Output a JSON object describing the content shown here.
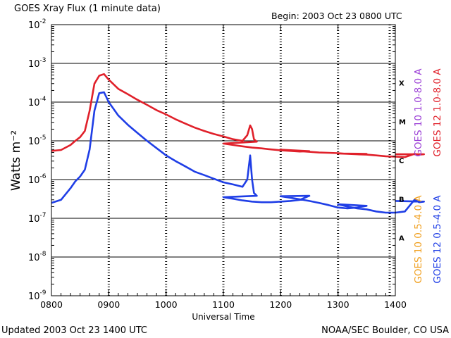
{
  "header": {
    "title": "GOES Xray Flux (1 minute data)",
    "begin": "Begin: 2003 Oct 23 0800 UTC"
  },
  "footer": {
    "updated": "Updated 2003 Oct 23 1400 UTC",
    "credit": "NOAA/SEC Boulder, CO USA"
  },
  "chart_data": {
    "type": "line",
    "title": "GOES Xray Flux (1 minute data)",
    "xlabel": "Universal Time",
    "ylabel": "Watts m⁻²",
    "y_scale": "log",
    "ylim": [
      1e-09,
      0.01
    ],
    "x_ticks": [
      "0800",
      "0900",
      "1000",
      "1100",
      "1200",
      "1300",
      "1400"
    ],
    "y_tick_labels": [
      "10",
      "10",
      "10",
      "10",
      "10",
      "10",
      "10",
      "10"
    ],
    "y_tick_exponents": [
      "-2",
      "-3",
      "-4",
      "-5",
      "-6",
      "-7",
      "-8",
      "-9"
    ],
    "flare_classes": [
      "X",
      "M",
      "C",
      "B",
      "A"
    ],
    "grid": "horizontal lines at each decade 1e-3 to 1e-8; dashed vertical lines each hour",
    "legend": [
      {
        "label": "GOES 10 1.0-8.0 A",
        "color": "#9b3fd6"
      },
      {
        "label": "GOES 12 1.0-8.0 A",
        "color": "#e0202a"
      },
      {
        "label": "GOES 10 0.5-4.0 A",
        "color": "#f0a020"
      },
      {
        "label": "GOES 12 0.5-4.0 A",
        "color": "#1f3ee6"
      }
    ],
    "series": [
      {
        "name": "GOES 12 1.0-8.0 A",
        "color": "#e0202a",
        "x": [
          "0800",
          "0810",
          "0820",
          "0825",
          "0830",
          "0835",
          "0840",
          "0845",
          "0850",
          "0855",
          "0900",
          "0910",
          "0920",
          "0930",
          "0940",
          "0950",
          "1000",
          "1010",
          "1020",
          "1030",
          "1040",
          "1050",
          "1060",
          "1070",
          "1080",
          "1085",
          "1088",
          "1090",
          "1092",
          "1095",
          "1100",
          "1110",
          "1120",
          "1130",
          "1140",
          "1150",
          "1160",
          "1170",
          "1180",
          "1190",
          "1200",
          "1210",
          "1220",
          "1230",
          "1240",
          "1250",
          "1260",
          "1270",
          "1280",
          "1290",
          "1300",
          "1310",
          "1320",
          "1330",
          "1340",
          "1350",
          "1360",
          "1370",
          "1380",
          "1385",
          "1390",
          "1400"
        ],
        "values": [
          5.5e-06,
          5.8e-06,
          7.8e-06,
          1e-05,
          1.25e-05,
          1.8e-05,
          6e-05,
          0.0003,
          0.00048,
          0.00053,
          0.00038,
          0.00022,
          0.00016,
          0.000115,
          8.5e-05,
          6.2e-05,
          4.8e-05,
          3.6e-05,
          2.8e-05,
          2.2e-05,
          1.8e-05,
          1.5e-05,
          1.3e-05,
          1.1e-05,
          1e-05,
          1.4e-05,
          2.5e-05,
          2e-05,
          1.1e-05,
          9.5e-06,
          8.5e-06,
          7.8e-06,
          7.2e-06,
          6.7e-06,
          6.4e-06,
          6e-06,
          5.7e-06,
          5.5e-06,
          5.3e-06,
          5.4e-06,
          5.9e-06,
          5.6e-06,
          5.4e-06,
          5.2e-06,
          5e-06,
          4.9e-06,
          4.8e-06,
          4.6e-06,
          4.5e-06,
          4.6e-06,
          4.7e-06,
          4.6e-06,
          4.5e-06,
          4.4e-06,
          4.2e-06,
          4e-06,
          3.9e-06,
          3.8e-06,
          4.6e-06,
          4.4e-06,
          4.5e-06,
          4.5e-06
        ]
      },
      {
        "name": "GOES 12 0.5-4.0 A",
        "color": "#1f3ee6",
        "x": [
          "0800",
          "0810",
          "0820",
          "0825",
          "0830",
          "0835",
          "0840",
          "0845",
          "0850",
          "0855",
          "0900",
          "0910",
          "0920",
          "0930",
          "0940",
          "0950",
          "1000",
          "1010",
          "1020",
          "1030",
          "1040",
          "1050",
          "1060",
          "1070",
          "1080",
          "1085",
          "1088",
          "1090",
          "1092",
          "1095",
          "1100",
          "1110",
          "1120",
          "1130",
          "1140",
          "1150",
          "1160",
          "1170",
          "1180",
          "1190",
          "1200",
          "1210",
          "1220",
          "1230",
          "1240",
          "1250",
          "1260",
          "1270",
          "1280",
          "1290",
          "1300",
          "1310",
          "1320",
          "1330",
          "1340",
          "1350",
          "1360",
          "1370",
          "1380",
          "1385",
          "1390",
          "1400"
        ],
        "values": [
          2.5e-07,
          3e-07,
          6e-07,
          9e-07,
          1.2e-06,
          1.8e-06,
          6e-06,
          6e-05,
          0.00017,
          0.00018,
          0.0001,
          4.5e-05,
          2.6e-05,
          1.6e-05,
          1e-05,
          6.5e-06,
          4.2e-06,
          3e-06,
          2.2e-06,
          1.6e-06,
          1.3e-06,
          1.05e-06,
          8.5e-07,
          7.5e-07,
          6.5e-07,
          1e-06,
          4.2e-06,
          1e-06,
          4.5e-07,
          3.8e-07,
          3.5e-07,
          3.2e-07,
          2.9e-07,
          2.7e-07,
          2.6e-07,
          2.6e-07,
          2.7e-07,
          2.8e-07,
          3e-07,
          3.8e-07,
          3.7e-07,
          3.4e-07,
          3.1e-07,
          2.8e-07,
          2.5e-07,
          2.2e-07,
          1.9e-07,
          1.8e-07,
          1.9e-07,
          2.1e-07,
          2.3e-07,
          2e-07,
          1.8e-07,
          1.7e-07,
          1.5e-07,
          1.4e-07,
          1.4e-07,
          1.5e-07,
          3e-07,
          2.6e-07,
          2.7e-07,
          2.8e-07
        ]
      }
    ]
  }
}
